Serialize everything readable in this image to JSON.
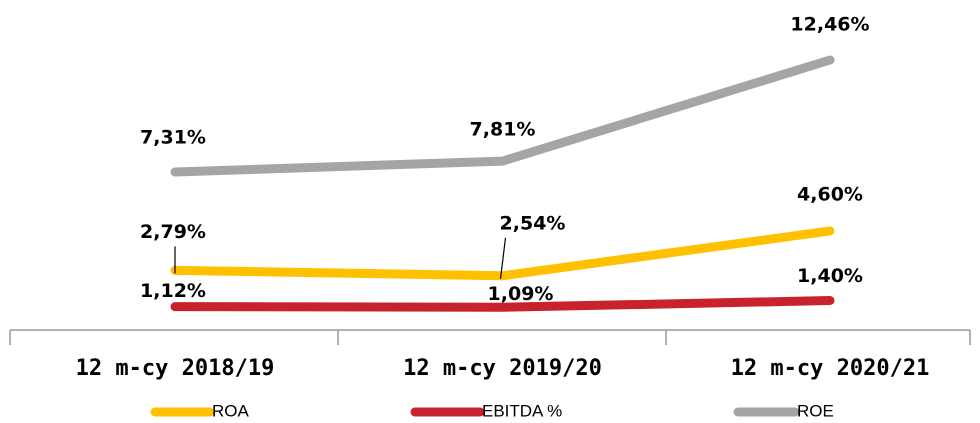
{
  "chart_data": {
    "type": "line",
    "categories": [
      "12 m-cy 2018/19",
      "12 m-cy 2019/20",
      "12 m-cy 2020/21"
    ],
    "series": [
      {
        "name": "ROA",
        "color": "#FFC000",
        "values": [
          2.79,
          2.54,
          4.6
        ],
        "value_labels": [
          "2,79%",
          "2,54%",
          "4,60%"
        ]
      },
      {
        "name": "EBITDA %",
        "color": "#C8232C",
        "values": [
          1.12,
          1.09,
          1.4
        ],
        "value_labels": [
          "1,12%",
          "1,09%",
          "1,40%"
        ]
      },
      {
        "name": "ROE",
        "color": "#A5A5A5",
        "values": [
          7.31,
          7.81,
          12.46
        ],
        "value_labels": [
          "7,31%",
          "7,81%",
          "12,46%"
        ]
      }
    ],
    "legend": "bottom"
  }
}
